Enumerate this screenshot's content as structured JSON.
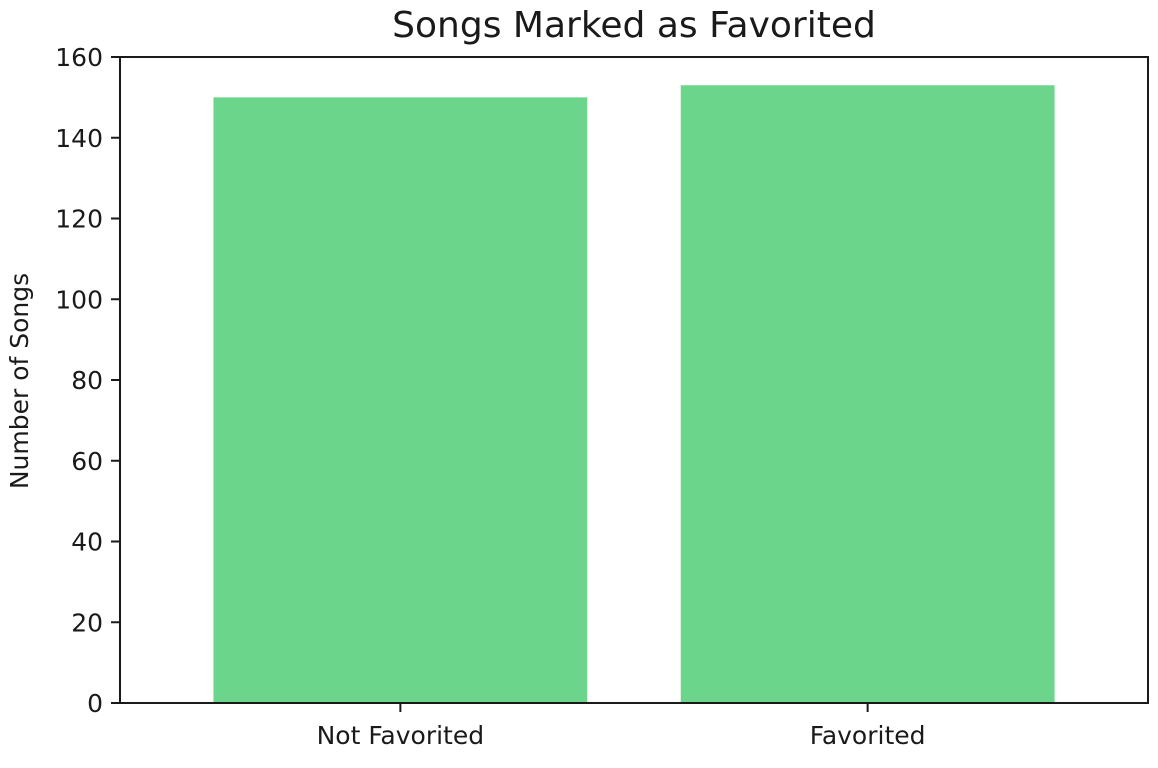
{
  "chart_data": {
    "type": "bar",
    "title": "Songs Marked as Favorited",
    "xlabel": "",
    "ylabel": "Number of Songs",
    "categories": [
      "Not Favorited",
      "Favorited"
    ],
    "values": [
      150,
      153
    ],
    "ylim": [
      0,
      160
    ],
    "yticks": [
      0,
      20,
      40,
      60,
      80,
      100,
      120,
      140,
      160
    ],
    "bar_color": "#6AD58B",
    "grid": false,
    "legend": "none"
  }
}
